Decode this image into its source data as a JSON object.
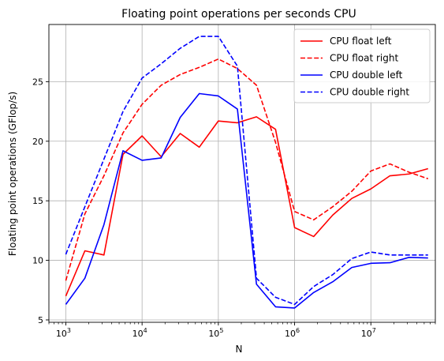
{
  "chart_data": {
    "type": "line",
    "title": "Floating point operations per seconds CPU",
    "xlabel": "N",
    "ylabel": "Floating point operations (GFlop/s)",
    "xscale": "log",
    "xlim": [
      600,
      70000000
    ],
    "ylim": [
      4.8,
      29.8
    ],
    "grid": true,
    "legend_position": "top-right",
    "x_ticks": [
      {
        "value": 1000,
        "base": "10",
        "exp": "3"
      },
      {
        "value": 10000,
        "base": "10",
        "exp": "4"
      },
      {
        "value": 100000,
        "base": "10",
        "exp": "5"
      },
      {
        "value": 1000000,
        "base": "10",
        "exp": "6"
      },
      {
        "value": 10000000,
        "base": "10",
        "exp": "7"
      }
    ],
    "y_ticks": [
      5,
      10,
      15,
      20,
      25
    ],
    "x": [
      1000,
      1778,
      3162,
      5623,
      10000,
      17783,
      31623,
      56234,
      100000,
      177828,
      316228,
      562341,
      1000000,
      1778279,
      3162278,
      5623413,
      10000000,
      17782794,
      31622777,
      56234133
    ],
    "series": [
      {
        "name": "CPU float left",
        "color": "#ff0000",
        "dash": "solid",
        "values": [
          7.0,
          10.8,
          10.45,
          18.9,
          20.45,
          18.7,
          20.65,
          19.5,
          21.7,
          21.55,
          22.05,
          21.0,
          12.75,
          12.0,
          13.8,
          15.2,
          16.0,
          17.1,
          17.25,
          17.7
        ]
      },
      {
        "name": "CPU float right",
        "color": "#ff0000",
        "dash": "dashed",
        "values": [
          8.3,
          13.9,
          17.1,
          20.7,
          23.1,
          24.7,
          25.6,
          26.2,
          26.9,
          26.1,
          24.7,
          19.9,
          14.1,
          13.4,
          14.5,
          15.8,
          17.5,
          18.1,
          17.4,
          16.85
        ]
      },
      {
        "name": "CPU double left",
        "color": "#0000ff",
        "dash": "solid",
        "values": [
          6.3,
          8.5,
          13.0,
          19.2,
          18.4,
          18.6,
          22.0,
          24.0,
          23.8,
          22.7,
          8.0,
          6.1,
          6.0,
          7.3,
          8.2,
          9.4,
          9.75,
          9.8,
          10.25,
          10.2
        ]
      },
      {
        "name": "CPU double right",
        "color": "#0000ff",
        "dash": "dashed",
        "values": [
          10.5,
          14.5,
          18.5,
          22.5,
          25.3,
          26.5,
          27.8,
          28.8,
          28.8,
          26.3,
          8.5,
          6.9,
          6.3,
          7.8,
          8.8,
          10.15,
          10.7,
          10.45,
          10.45,
          10.45
        ]
      }
    ]
  }
}
